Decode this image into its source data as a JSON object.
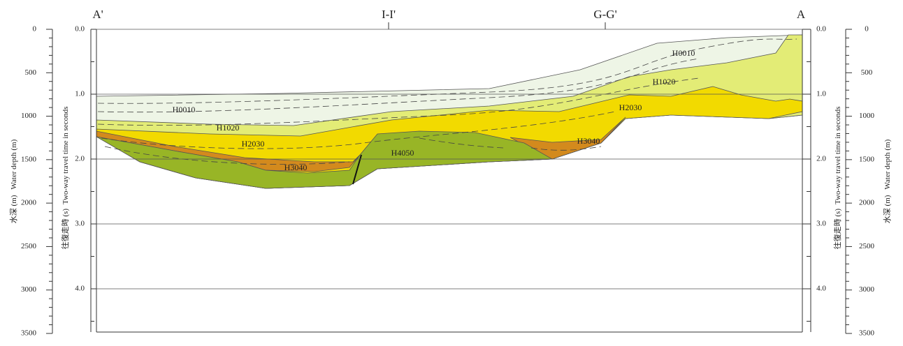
{
  "sections": [
    "A'",
    "I-I'",
    "G-G'",
    "A"
  ],
  "depth_axis": {
    "title_ja": "水深 (m)",
    "title_en": "Water depth (m)",
    "ticks": [
      0,
      500,
      1000,
      1500,
      2000,
      2500,
      3000,
      3500
    ]
  },
  "twt_axis": {
    "title_ja": "往復走時 (s)",
    "title_en": "Two-way travel time in seconds",
    "ticks": [
      {
        "value": 0,
        "label": "0.0"
      },
      {
        "value": 1,
        "label": "1.0"
      },
      {
        "value": 2,
        "label": "2.0"
      },
      {
        "value": 3,
        "label": "3.0"
      },
      {
        "value": 4,
        "label": "4.0"
      }
    ]
  },
  "layer_labels": [
    "H0010",
    "H1020",
    "H2030",
    "H3040",
    "H4050",
    "H3040",
    "H2030",
    "H1020",
    "H0010"
  ]
}
